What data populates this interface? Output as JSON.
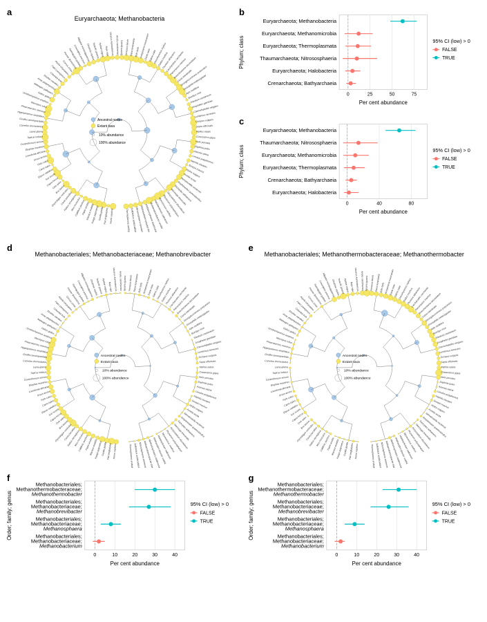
{
  "panels": {
    "a": {
      "label": "a",
      "title": "Euryarchaeota; Methanobacteria"
    },
    "b": {
      "label": "b",
      "ylabel": "Phylum; class",
      "xlabel": "Per cent abundance"
    },
    "c": {
      "label": "c",
      "ylabel": "Phylum; class",
      "xlabel": "Per cent abundance"
    },
    "d": {
      "label": "d",
      "title": "Methanobacteriales; Methanobacteriaceae; Methanobrevibacter"
    },
    "e": {
      "label": "e",
      "title": "Methanobacteriales; Methanothermobacteraceae; Methanothermobacter"
    },
    "f": {
      "label": "f",
      "ylabel": "Order; family; genus",
      "xlabel": "Per cent abundance"
    },
    "g": {
      "label": "g",
      "ylabel": "Order; family; genus",
      "xlabel": "Per cent abundance"
    }
  },
  "legend": {
    "title": "95% CI (low) > 0",
    "items": [
      {
        "label": "FALSE",
        "color": "#f8766d"
      },
      {
        "label": "TRUE",
        "color": "#00bfc4"
      }
    ]
  },
  "tree_legend": {
    "node_types": [
      {
        "label": "Ancestral nodes",
        "color": "#a8c8e8",
        "stroke": "#5a8ab8"
      },
      {
        "label": "Extant taxa",
        "color": "#f5e663",
        "stroke": "#c9b840"
      }
    ],
    "sizes": [
      {
        "label": "10% abundance",
        "r": 1.8
      },
      {
        "label": "100% abundance",
        "r": 5
      }
    ]
  },
  "colors": {
    "false": "#f8766d",
    "true": "#00bfc4",
    "ancestral": "#a8c8e8",
    "extant": "#f5e663",
    "grid": "#d8d8d8",
    "zero_line": "#999999",
    "tree_line": "#555555",
    "text": "#333333"
  },
  "forest_b": {
    "xlim": [
      -10,
      90
    ],
    "xticks": [
      0,
      25,
      50,
      75
    ],
    "data": [
      {
        "label": "Euryarchaeota; Methanobacteria",
        "mean": 62,
        "low": 48,
        "high": 78,
        "sig": true
      },
      {
        "label": "Euryarchaeota; Methanomicrobia",
        "mean": 12,
        "low": -4,
        "high": 28,
        "sig": false
      },
      {
        "label": "Euryarchaeota; Thermoplasmata",
        "mean": 11,
        "low": -3,
        "high": 26,
        "sig": false
      },
      {
        "label": "Thaumarchaeota; Nitrososphaeria",
        "mean": 10,
        "low": -6,
        "high": 33,
        "sig": false
      },
      {
        "label": "Euryarchaeota; Halobacteria",
        "mean": 5,
        "low": -3,
        "high": 14,
        "sig": false
      },
      {
        "label": "Crenarchaeota; Bathyarchaeia",
        "mean": 3,
        "low": -2,
        "high": 9,
        "sig": false
      }
    ]
  },
  "forest_c": {
    "xlim": [
      -10,
      100
    ],
    "xticks": [
      0,
      40,
      80
    ],
    "data": [
      {
        "label": "Euryarchaeota; Methanobacteria",
        "mean": 65,
        "low": 48,
        "high": 85,
        "sig": true
      },
      {
        "label": "Thaumarchaeota; Nitrososphaeria",
        "mean": 14,
        "low": -5,
        "high": 38,
        "sig": false
      },
      {
        "label": "Euryarchaeota; Methanomicrobia",
        "mean": 10,
        "low": -5,
        "high": 27,
        "sig": false
      },
      {
        "label": "Euryarchaeota; Thermoplasmata",
        "mean": 8,
        "low": -4,
        "high": 22,
        "sig": false
      },
      {
        "label": "Crenarchaeota; Bathyarchaeia",
        "mean": 5,
        "low": -2,
        "high": 12,
        "sig": false
      },
      {
        "label": "Euryarchaeota; Halobacteria",
        "mean": 2,
        "low": -4,
        "high": 14,
        "sig": false
      }
    ]
  },
  "forest_f": {
    "xlim": [
      -5,
      45
    ],
    "xticks": [
      0,
      10,
      20,
      30,
      40
    ],
    "data": [
      {
        "label": "Methanobacteriales;\nMethanothermobacteraceae;\nMethanothermobacter",
        "mean": 30,
        "low": 20,
        "high": 40,
        "sig": true
      },
      {
        "label": "Methanobacteriales;\nMethanobacteriaceae;\nMethanobrevibacter",
        "mean": 27,
        "low": 17,
        "high": 38,
        "sig": true
      },
      {
        "label": "Methanobacteriales;\nMethanobacteriaceae;\nMethanosphaera",
        "mean": 8,
        "low": 3,
        "high": 13,
        "sig": true
      },
      {
        "label": "Methanobacteriales;\nMethanobacteriaceae;\nMethanobacterium",
        "mean": 2,
        "low": -1,
        "high": 5,
        "sig": false
      }
    ]
  },
  "forest_g": {
    "xlim": [
      -5,
      45
    ],
    "xticks": [
      0,
      10,
      20,
      30,
      40
    ],
    "data": [
      {
        "label": "Methanobacteriales;\nMethanothermobacteraceae;\nMethanothermobacter",
        "mean": 31,
        "low": 23,
        "high": 40,
        "sig": true
      },
      {
        "label": "Methanobacteriales;\nMethanobacteriaceae;\nMethanobrevibacter",
        "mean": 26,
        "low": 17,
        "high": 36,
        "sig": true
      },
      {
        "label": "Methanobacteriales;\nMethanobacteriaceae;\nMethanosphaera",
        "mean": 9,
        "low": 4,
        "high": 14,
        "sig": true
      },
      {
        "label": "Methanobacteriales;\nMethanobacteriaceae;\nMethanobacterium",
        "mean": 2,
        "low": -1,
        "high": 4,
        "sig": false
      }
    ]
  },
  "tree_species": [
    "Homo sapiens",
    "Pan troglodytes",
    "Gorilla gorilla",
    "Pongo pygmaeus",
    "Macaca mulatta",
    "Papio anubis",
    "Callithrix jacchus",
    "Mus musculus",
    "Rattus norvegicus",
    "Cavia porcellus",
    "Oryctolagus cuniculus",
    "Bos taurus",
    "Ovis aries",
    "Capra hircus",
    "Sus scrofa",
    "Equus caballus",
    "Canis lupus",
    "Felis catus",
    "Ursus arctos",
    "Loxodonta africana",
    "Elephas maximus",
    "Ceratotherium simum",
    "Tapirus indicus",
    "Lama glama",
    "Camelus dromedarius",
    "Giraffa camelopardalis",
    "Hippopotamus amphibius",
    "Phascolarctos cinereus",
    "Macropus rufus",
    "Ornithorhynchus anatinus",
    "Gallus gallus",
    "Meleagris gallopavo",
    "Anas platyrhynchos",
    "Struthio camelus",
    "Columba livia",
    "Falco peregrinus",
    "Aquila chrysaetos",
    "Corvus corax",
    "Passer domesticus",
    "Taeniopygia guttata",
    "Crocodylus porosus",
    "Alligator mississippiensis",
    "Chelonia mydas",
    "Testudo graeca",
    "Python regius",
    "Naja naja",
    "Varanus komodoensis",
    "Anolis carolinensis",
    "Iguana iguana",
    "Xenopus laevis",
    "Rana temporaria",
    "Bufo bufo",
    "Ambystoma mexicanum",
    "Danio rerio",
    "Salmo salar",
    "Oncorhynchus mykiss",
    "Gadus morhua",
    "Thunnus albacares",
    "Carcharodon carcharias",
    "Petromyzon marinus",
    "Branchiostoma lanceolatum",
    "Ciona intestinalis",
    "Strongylocentrotus purpuratus",
    "Drosophila melanogaster",
    "Apis mellifera",
    "Bombyx mori",
    "Tribolium castaneum",
    "Anopheles gambiae",
    "Caenorhabditis elegans",
    "Lumbricus terrestris",
    "Octopus vulgaris",
    "Sepia officinalis",
    "Mytilus edulis",
    "Crassostrea gigas",
    "Helix pomatia",
    "Daphnia pulex",
    "Artemia salina",
    "Limulus polyphemus",
    "Nephila clavipes",
    "Scorpio maurus",
    "Hydra vulgaris",
    "Aurelia aurita",
    "Nematostella vectensis",
    "Amphimedon queenslandica",
    "Trichoplax adhaerens",
    "Monosiga brevicollis",
    "Dictyostelium discoideum",
    "Physarum polycephalum",
    "Myxococcus xanthus",
    "Halobacterium salinarum",
    "Methanobrevibacter smithii",
    "Methanosphaera stadtmanae",
    "Methanothermobacter thermautotrophicus",
    "Nitrososphaera viennensis",
    "Sulfolobus acidocaldarius",
    "Thermoplasma acidophilum"
  ]
}
